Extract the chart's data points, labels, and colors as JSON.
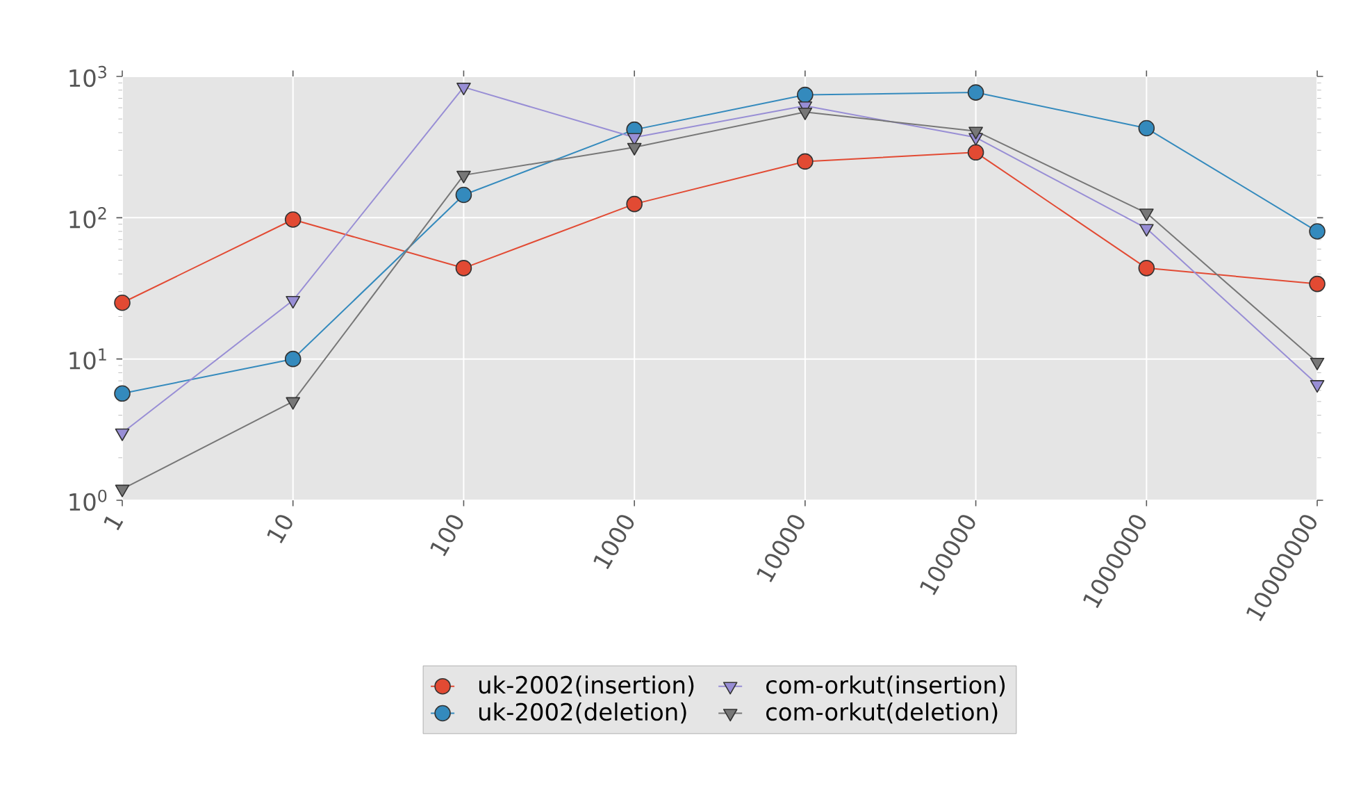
{
  "chart_data": {
    "type": "line",
    "log": "xy",
    "x": [
      1,
      10,
      100,
      1000,
      10000,
      100000,
      1000000,
      10000000
    ],
    "xlim": [
      1,
      10000000
    ],
    "xticks": [
      1,
      10,
      100,
      1000,
      10000,
      100000,
      1000000,
      10000000
    ],
    "ylim": [
      1,
      1000
    ],
    "yticks": [
      {
        "value": 1,
        "label": "10$^{0}$"
      },
      {
        "value": 10,
        "label": "10$^{1}$"
      },
      {
        "value": 100,
        "label": "10$^{2}$"
      },
      {
        "value": 1000,
        "label": "10$^{3}$"
      }
    ],
    "grid": true,
    "legend": "bottom",
    "series": [
      {
        "name": "uk-2002(insertion)",
        "color": "#e24a33",
        "marker": "circle",
        "values": [
          25,
          97,
          44,
          125,
          250,
          290,
          44,
          34
        ]
      },
      {
        "name": "uk-2002(deletion)",
        "color": "#348abd",
        "marker": "circle",
        "values": [
          5.7,
          10,
          145,
          420,
          740,
          770,
          430,
          80
        ]
      },
      {
        "name": "com-orkut(insertion)",
        "color": "#988ed5",
        "marker": "triangle",
        "values": [
          3,
          26,
          840,
          370,
          620,
          370,
          84,
          6.6
        ]
      },
      {
        "name": "com-orkut(deletion)",
        "color": "#777777",
        "marker": "triangle",
        "values": [
          1.2,
          5,
          200,
          315,
          560,
          410,
          108,
          9.5
        ]
      }
    ]
  }
}
